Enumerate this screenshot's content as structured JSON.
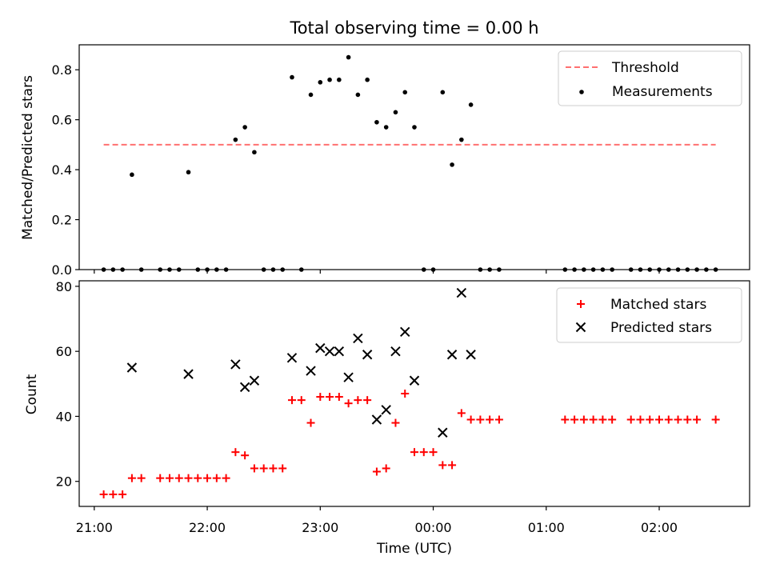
{
  "chart_data": [
    {
      "type": "scatter",
      "title": "Total observing time = 0.00 h",
      "xlabel": "",
      "ylabel": "Matched/Predicted stars",
      "xlim": [
        "20:52",
        "02:48"
      ],
      "ylim": [
        0,
        0.9
      ],
      "x_axis_shared": true,
      "yticks": [
        0.0,
        0.2,
        0.4,
        0.6,
        0.8
      ],
      "ytick_labels": [
        "0.0",
        "0.2",
        "0.4",
        "0.6",
        "0.8"
      ],
      "legend": {
        "placement": "top-right",
        "entries": [
          "Threshold",
          "Measurements"
        ]
      },
      "threshold": {
        "name": "Threshold",
        "value": 0.5,
        "x": [
          "21:05",
          "02:30"
        ],
        "color": "#ff7070"
      },
      "series": [
        {
          "name": "Measurements",
          "color": "#000000",
          "points": [
            [
              "21:05",
              0
            ],
            [
              "21:10",
              0
            ],
            [
              "21:15",
              0
            ],
            [
              "21:20",
              0.38
            ],
            [
              "21:25",
              0
            ],
            [
              "21:35",
              0
            ],
            [
              "21:40",
              0
            ],
            [
              "21:45",
              0
            ],
            [
              "21:50",
              0.39
            ],
            [
              "21:55",
              0
            ],
            [
              "22:00",
              0
            ],
            [
              "22:05",
              0
            ],
            [
              "22:10",
              0
            ],
            [
              "22:15",
              0.52
            ],
            [
              "22:20",
              0.57
            ],
            [
              "22:25",
              0.47
            ],
            [
              "22:30",
              0
            ],
            [
              "22:35",
              0
            ],
            [
              "22:40",
              0
            ],
            [
              "22:45",
              0.77
            ],
            [
              "22:50",
              0
            ],
            [
              "22:55",
              0.7
            ],
            [
              "23:00",
              0.75
            ],
            [
              "23:05",
              0.76
            ],
            [
              "23:10",
              0.76
            ],
            [
              "23:15",
              0.85
            ],
            [
              "23:20",
              0.7
            ],
            [
              "23:25",
              0.76
            ],
            [
              "23:30",
              0.59
            ],
            [
              "23:35",
              0.57
            ],
            [
              "23:40",
              0.63
            ],
            [
              "23:45",
              0.71
            ],
            [
              "23:50",
              0.57
            ],
            [
              "23:55",
              0
            ],
            [
              "00:00",
              0
            ],
            [
              "00:05",
              0.71
            ],
            [
              "00:10",
              0.42
            ],
            [
              "00:15",
              0.52
            ],
            [
              "00:20",
              0.66
            ],
            [
              "00:25",
              0
            ],
            [
              "00:30",
              0
            ],
            [
              "00:35",
              0
            ],
            [
              "01:10",
              0
            ],
            [
              "01:15",
              0
            ],
            [
              "01:20",
              0
            ],
            [
              "01:25",
              0
            ],
            [
              "01:30",
              0
            ],
            [
              "01:35",
              0
            ],
            [
              "01:45",
              0
            ],
            [
              "01:50",
              0
            ],
            [
              "01:55",
              0
            ],
            [
              "02:00",
              0
            ],
            [
              "02:05",
              0
            ],
            [
              "02:10",
              0
            ],
            [
              "02:15",
              0
            ],
            [
              "02:20",
              0
            ],
            [
              "02:25",
              0
            ],
            [
              "02:30",
              0
            ]
          ]
        }
      ]
    },
    {
      "type": "scatter",
      "title": "",
      "xlabel": "Time (UTC)",
      "ylabel": "Count",
      "xlim": [
        "20:52",
        "02:48"
      ],
      "ylim": [
        12.3,
        81.7
      ],
      "yticks": [
        20,
        40,
        60,
        80
      ],
      "ytick_labels": [
        "20",
        "40",
        "60",
        "80"
      ],
      "xticks": [
        "21:00",
        "22:00",
        "23:00",
        "00:00",
        "01:00",
        "02:00"
      ],
      "xtick_labels": [
        "21:00",
        "22:00",
        "23:00",
        "00:00",
        "01:00",
        "02:00"
      ],
      "legend": {
        "placement": "top-right",
        "entries": [
          "Matched stars",
          "Predicted stars"
        ]
      },
      "series": [
        {
          "name": "Matched stars",
          "marker": "plus",
          "color": "#ff0000",
          "points": [
            [
              "21:05",
              16
            ],
            [
              "21:10",
              16
            ],
            [
              "21:15",
              16
            ],
            [
              "21:20",
              21
            ],
            [
              "21:25",
              21
            ],
            [
              "21:35",
              21
            ],
            [
              "21:40",
              21
            ],
            [
              "21:45",
              21
            ],
            [
              "21:50",
              21
            ],
            [
              "21:55",
              21
            ],
            [
              "22:00",
              21
            ],
            [
              "22:05",
              21
            ],
            [
              "22:10",
              21
            ],
            [
              "22:15",
              29
            ],
            [
              "22:20",
              28
            ],
            [
              "22:25",
              24
            ],
            [
              "22:30",
              24
            ],
            [
              "22:35",
              24
            ],
            [
              "22:40",
              24
            ],
            [
              "22:45",
              45
            ],
            [
              "22:50",
              45
            ],
            [
              "22:55",
              38
            ],
            [
              "23:00",
              46
            ],
            [
              "23:05",
              46
            ],
            [
              "23:10",
              46
            ],
            [
              "23:15",
              44
            ],
            [
              "23:20",
              45
            ],
            [
              "23:25",
              45
            ],
            [
              "23:30",
              23
            ],
            [
              "23:35",
              24
            ],
            [
              "23:40",
              38
            ],
            [
              "23:45",
              47
            ],
            [
              "23:50",
              29
            ],
            [
              "23:55",
              29
            ],
            [
              "00:00",
              29
            ],
            [
              "00:05",
              25
            ],
            [
              "00:10",
              25
            ],
            [
              "00:15",
              41
            ],
            [
              "00:20",
              39
            ],
            [
              "00:25",
              39
            ],
            [
              "00:30",
              39
            ],
            [
              "00:35",
              39
            ],
            [
              "01:10",
              39
            ],
            [
              "01:15",
              39
            ],
            [
              "01:20",
              39
            ],
            [
              "01:25",
              39
            ],
            [
              "01:30",
              39
            ],
            [
              "01:35",
              39
            ],
            [
              "01:45",
              39
            ],
            [
              "01:50",
              39
            ],
            [
              "01:55",
              39
            ],
            [
              "02:00",
              39
            ],
            [
              "02:05",
              39
            ],
            [
              "02:10",
              39
            ],
            [
              "02:15",
              39
            ],
            [
              "02:20",
              39
            ],
            [
              "02:30",
              39
            ]
          ]
        },
        {
          "name": "Predicted stars",
          "marker": "x",
          "color": "#000000",
          "points": [
            [
              "21:20",
              55
            ],
            [
              "21:50",
              53
            ],
            [
              "22:15",
              56
            ],
            [
              "22:20",
              49
            ],
            [
              "22:25",
              51
            ],
            [
              "22:45",
              58
            ],
            [
              "22:55",
              54
            ],
            [
              "23:00",
              61
            ],
            [
              "23:05",
              60
            ],
            [
              "23:10",
              60
            ],
            [
              "23:15",
              52
            ],
            [
              "23:20",
              64
            ],
            [
              "23:25",
              59
            ],
            [
              "23:30",
              39
            ],
            [
              "23:35",
              42
            ],
            [
              "23:40",
              60
            ],
            [
              "23:45",
              66
            ],
            [
              "23:50",
              51
            ],
            [
              "00:05",
              35
            ],
            [
              "00:10",
              59
            ],
            [
              "00:15",
              78
            ],
            [
              "00:20",
              59
            ]
          ]
        }
      ]
    }
  ]
}
